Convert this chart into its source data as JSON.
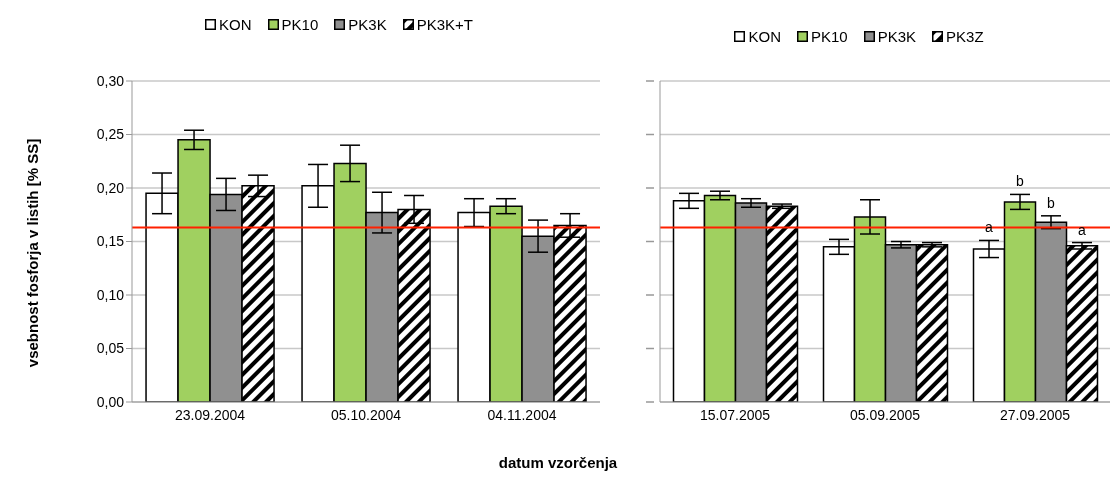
{
  "chart_data": [
    {
      "type": "bar",
      "ylabel": "vsebnost fosforja v listih [% SS]",
      "xlabel": "datum vzorčenja",
      "categories": [
        "23.09.2004",
        "05.10.2004",
        "04.11.2004"
      ],
      "series": [
        {
          "name": "KON",
          "color": "#ffffff",
          "values": [
            0.195,
            0.202,
            0.177
          ],
          "errors": [
            0.019,
            0.02,
            0.013
          ]
        },
        {
          "name": "PK10",
          "color": "#a0d060",
          "values": [
            0.245,
            0.223,
            0.183
          ],
          "errors": [
            0.009,
            0.017,
            0.007
          ]
        },
        {
          "name": "PK3K",
          "color": "#909090",
          "values": [
            0.194,
            0.177,
            0.155
          ],
          "errors": [
            0.015,
            0.019,
            0.015
          ]
        },
        {
          "name": "PK3K+T",
          "color": "#000000",
          "values": [
            0.202,
            0.18,
            0.165
          ],
          "errors": [
            0.01,
            0.013,
            0.011
          ]
        }
      ],
      "ylim": [
        0,
        0.3
      ],
      "yticks": [
        {
          "value": 0,
          "label": "0,00"
        },
        {
          "value": 0.05,
          "label": "0,05"
        },
        {
          "value": 0.1,
          "label": "0,10"
        },
        {
          "value": 0.15,
          "label": "0,15"
        },
        {
          "value": 0.2,
          "label": "0,20"
        },
        {
          "value": 0.25,
          "label": "0,25"
        },
        {
          "value": 0.3,
          "label": "0,30"
        }
      ],
      "grid": "y",
      "legend": "top",
      "ref_lines": [
        {
          "axis": "y",
          "value": 0.163,
          "color": "#ff2000"
        }
      ]
    },
    {
      "type": "bar",
      "categories": [
        "15.07.2005",
        "05.09.2005",
        "27.09.2005"
      ],
      "series": [
        {
          "name": "KON",
          "color": "#ffffff",
          "values": [
            0.188,
            0.145,
            0.143
          ],
          "errors": [
            0.007,
            0.007,
            0.008
          ]
        },
        {
          "name": "PK10",
          "color": "#a0d060",
          "values": [
            0.193,
            0.173,
            0.187
          ],
          "errors": [
            0.004,
            0.016,
            0.007
          ]
        },
        {
          "name": "PK3K",
          "color": "#909090",
          "values": [
            0.186,
            0.147,
            0.168
          ],
          "errors": [
            0.004,
            0.003,
            0.006
          ]
        },
        {
          "name": "PK3Z",
          "color": "#000000",
          "values": [
            0.183,
            0.147,
            0.146
          ],
          "errors": [
            0.002,
            0.002,
            0.003
          ]
        }
      ],
      "ylim": [
        0,
        0.3
      ],
      "yticks": [
        0,
        0.05,
        0.1,
        0.15,
        0.2,
        0.25,
        0.3
      ],
      "tick_labels": "x",
      "grid": "y",
      "legend": "top",
      "ref_lines": [
        {
          "axis": "y",
          "value": 0.163,
          "color": "#ff2000"
        }
      ],
      "annotations": [
        "a",
        "b",
        "b",
        "a"
      ]
    }
  ]
}
